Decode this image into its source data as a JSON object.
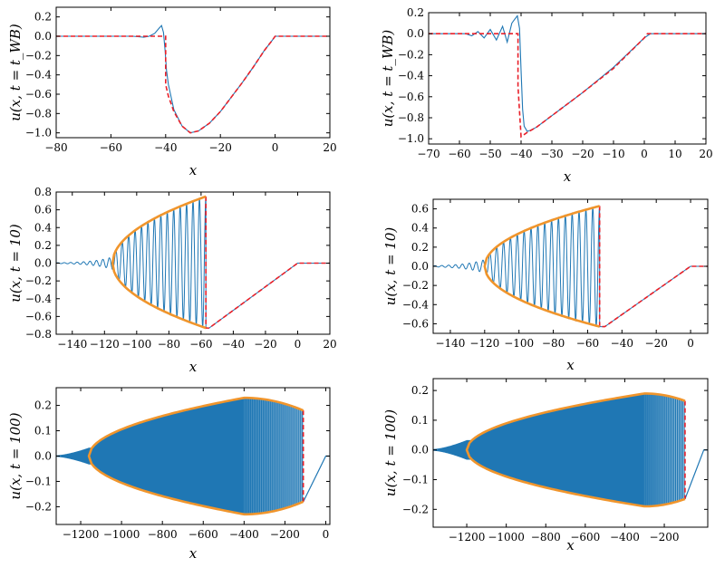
{
  "chart_data": [
    {
      "type": "line",
      "ylabel": "u(x, t = t_WB)",
      "xlabel": "x",
      "xlim": [
        -80,
        20
      ],
      "ylim": [
        -1.05,
        0.3
      ],
      "xticks": [
        -80,
        -60,
        -40,
        -20,
        0,
        20
      ],
      "xtick_labels": [
        "−80",
        "−60",
        "−40",
        "−20",
        "0",
        "20"
      ],
      "yticks": [
        -1.0,
        -0.8,
        -0.6,
        -0.4,
        -0.2,
        0.0,
        0.2
      ],
      "ytick_labels": [
        "−1.0",
        "−0.8",
        "−0.6",
        "−0.4",
        "−0.2",
        "0.0",
        "0.2"
      ],
      "series": [
        {
          "kind": "numerical",
          "color": "#1f77b4",
          "style": "solid",
          "x": [
            -80,
            -52,
            -48,
            -46,
            -44,
            -42.5,
            -41.5,
            -40.8,
            -40.2,
            -39.7,
            -39,
            -37,
            -34,
            -31,
            -28,
            -24,
            -20,
            -16,
            -12,
            -8,
            -4,
            -1,
            0,
            2,
            20
          ],
          "y": [
            0,
            0,
            -0.01,
            0.0,
            0.03,
            0.08,
            0.11,
            0.04,
            -0.15,
            -0.35,
            -0.5,
            -0.76,
            -0.93,
            -1.0,
            -0.98,
            -0.9,
            -0.78,
            -0.63,
            -0.48,
            -0.32,
            -0.15,
            -0.04,
            0,
            0,
            0
          ]
        },
        {
          "kind": "asymptotic",
          "color": "#e8202a",
          "style": "dashed",
          "x": [
            -80,
            -40,
            -40,
            -39,
            -37,
            -34,
            -31,
            -28,
            -24,
            -20,
            -16,
            -12,
            -8,
            -4,
            -1,
            0,
            20
          ],
          "y": [
            0,
            0,
            -0.5,
            -0.62,
            -0.78,
            -0.93,
            -1.0,
            -0.98,
            -0.9,
            -0.78,
            -0.63,
            -0.48,
            -0.32,
            -0.15,
            -0.04,
            0,
            0
          ]
        }
      ]
    },
    {
      "type": "line",
      "ylabel": "u(x, t = t_WB)",
      "xlabel": "x",
      "xlim": [
        -70,
        20
      ],
      "ylim": [
        -1.05,
        0.2
      ],
      "xticks": [
        -70,
        -60,
        -50,
        -40,
        -30,
        -20,
        -10,
        0,
        10,
        20
      ],
      "xtick_labels": [
        "−70",
        "−60",
        "−50",
        "−40",
        "−30",
        "−20",
        "−10",
        "0",
        "10",
        "20"
      ],
      "yticks": [
        -1.0,
        -0.8,
        -0.6,
        -0.4,
        -0.2,
        0.0,
        0.2
      ],
      "ytick_labels": [
        "−1.0",
        "−0.8",
        "−0.6",
        "−0.4",
        "−0.2",
        "0.0",
        "0.2"
      ],
      "series": [
        {
          "kind": "numerical",
          "color": "#1f77b4",
          "style": "solid",
          "x": [
            -70,
            -58,
            -56,
            -54,
            -52,
            -50,
            -48,
            -46,
            -44.5,
            -43,
            -42,
            -41.2,
            -40.5,
            -40,
            -39.5,
            -39,
            -38,
            -37,
            -35,
            -30,
            -20,
            -10,
            0,
            2,
            20
          ],
          "y": [
            0,
            0,
            -0.02,
            0.02,
            -0.04,
            0.04,
            -0.06,
            0.07,
            -0.08,
            0.1,
            0.14,
            0.17,
            0.05,
            -0.35,
            -0.72,
            -0.88,
            -0.93,
            -0.92,
            -0.89,
            -0.78,
            -0.56,
            -0.32,
            -0.04,
            0,
            0
          ]
        },
        {
          "kind": "asymptotic",
          "color": "#e8202a",
          "style": "dashed",
          "x": [
            -70,
            -41,
            -41,
            -40,
            -38,
            -35,
            -30,
            -20,
            -10,
            0,
            1,
            20
          ],
          "y": [
            0,
            0,
            -0.5,
            -0.98,
            -0.94,
            -0.89,
            -0.78,
            -0.56,
            -0.33,
            -0.04,
            0,
            0
          ]
        }
      ]
    },
    {
      "type": "line",
      "ylabel": "u(x, t = 10)",
      "xlabel": "x",
      "xlim": [
        -150,
        20
      ],
      "ylim": [
        -0.8,
        0.8
      ],
      "xticks": [
        -140,
        -120,
        -100,
        -80,
        -60,
        -40,
        -20,
        0,
        20
      ],
      "xtick_labels": [
        "−140",
        "−120",
        "−100",
        "−80",
        "−60",
        "−40",
        "−20",
        "0",
        "20"
      ],
      "yticks": [
        -0.8,
        -0.6,
        -0.4,
        -0.2,
        0.0,
        0.2,
        0.4,
        0.6,
        0.8
      ],
      "ytick_labels": [
        "−0.8",
        "−0.6",
        "−0.4",
        "−0.2",
        "0.0",
        "0.2",
        "0.4",
        "0.6",
        "0.8"
      ],
      "oscillation": {
        "x_start": -150,
        "x_shock": -57,
        "wavelength": 4.0,
        "envelope_x_left": -115
      },
      "envelope": {
        "color": "#f0952c",
        "x_left": -115,
        "x_right": -57,
        "y_upper_right": 0.75,
        "y_lower_right": -0.73
      },
      "ramp": {
        "x": [
          -55,
          0,
          4,
          20
        ],
        "y": [
          -0.73,
          0,
          0,
          0
        ]
      },
      "series": [
        {
          "kind": "asymptotic",
          "color": "#e8202a",
          "style": "dashed",
          "x": [
            -57,
            -57,
            -55,
            0,
            4,
            20
          ],
          "y": [
            0.75,
            -0.73,
            -0.73,
            0,
            0,
            0
          ]
        }
      ]
    },
    {
      "type": "line",
      "ylabel": "u(x, t = 10)",
      "xlabel": "x",
      "xlim": [
        -150,
        10
      ],
      "ylim": [
        -0.7,
        0.7
      ],
      "xticks": [
        -140,
        -120,
        -100,
        -80,
        -60,
        -40,
        -20,
        0
      ],
      "xtick_labels": [
        "−140",
        "−120",
        "−100",
        "−80",
        "−60",
        "−40",
        "−20",
        "0"
      ],
      "yticks": [
        -0.6,
        -0.4,
        -0.2,
        0.0,
        0.2,
        0.4,
        0.6
      ],
      "ytick_labels": [
        "−0.6",
        "−0.4",
        "−0.2",
        "0.0",
        "0.2",
        "0.4",
        "0.6"
      ],
      "oscillation": {
        "x_start": -150,
        "x_shock": -53,
        "wavelength": 4.0,
        "envelope_x_left": -120
      },
      "envelope": {
        "color": "#f0952c",
        "x_left": -120,
        "x_right": -53,
        "y_upper_right": 0.63,
        "y_lower_right": -0.63
      },
      "ramp": {
        "x": [
          -50,
          0,
          3,
          10
        ],
        "y": [
          -0.63,
          0,
          0,
          0
        ]
      },
      "series": [
        {
          "kind": "asymptotic",
          "color": "#e8202a",
          "style": "dashed",
          "x": [
            -53,
            -53,
            -50,
            0,
            3,
            10
          ],
          "y": [
            0.63,
            -0.63,
            -0.63,
            0,
            0,
            0
          ]
        }
      ]
    },
    {
      "type": "line",
      "ylabel": "u(x, t = 100)",
      "xlabel": "x",
      "xlim": [
        -1320,
        20
      ],
      "ylim": [
        -0.27,
        0.27
      ],
      "xticks": [
        -1200,
        -1000,
        -800,
        -600,
        -400,
        -200,
        0
      ],
      "xtick_labels": [
        "−1200",
        "−1000",
        "−800",
        "−600",
        "−400",
        "−200",
        "0"
      ],
      "yticks": [
        -0.2,
        -0.1,
        0.0,
        0.1,
        0.2
      ],
      "ytick_labels": [
        "−0.2",
        "−0.1",
        "0.0",
        "0.1",
        "0.2"
      ],
      "band": {
        "color": "#1f77b4",
        "x_start": -1320,
        "x_envelope": -1160,
        "x_shock": -110
      },
      "envelope": {
        "color": "#f0952c",
        "x_left": -1160,
        "x_right": -110,
        "x_peak": -400,
        "y_peak_upper": 0.23,
        "y_peak_lower": -0.23,
        "y_upper_right": 0.18,
        "y_lower_right": -0.18
      },
      "ramp": {
        "x": [
          -110,
          0,
          20
        ],
        "y": [
          -0.18,
          0,
          0
        ]
      },
      "series": [
        {
          "kind": "asymptotic",
          "color": "#e8202a",
          "style": "dashed",
          "x": [
            -110,
            -110
          ],
          "y": [
            0.18,
            -0.18
          ]
        }
      ]
    },
    {
      "type": "line",
      "ylabel": "u(x, t = 100)",
      "xlabel": "x",
      "xlim": [
        -1370,
        20
      ],
      "ylim": [
        -0.26,
        0.24
      ],
      "xticks": [
        -1200,
        -1000,
        -800,
        -600,
        -400,
        -200
      ],
      "xtick_labels": [
        "−1200",
        "−1000",
        "−800",
        "−600",
        "−400",
        "−200"
      ],
      "yticks": [
        -0.2,
        -0.1,
        0.0,
        0.1,
        0.2
      ],
      "ytick_labels": [
        "−0.2",
        "−0.1",
        "0.0",
        "0.1",
        "0.2"
      ],
      "band": {
        "color": "#1f77b4",
        "x_start": -1370,
        "x_envelope": -1200,
        "x_shock": -95
      },
      "envelope": {
        "color": "#f0952c",
        "x_left": -1200,
        "x_right": -95,
        "x_peak": -300,
        "y_peak_upper": 0.19,
        "y_peak_lower": -0.19,
        "y_upper_right": 0.165,
        "y_lower_right": -0.165
      },
      "ramp": {
        "x": [
          -95,
          0,
          20
        ],
        "y": [
          -0.165,
          0,
          0
        ]
      },
      "series": [
        {
          "kind": "asymptotic",
          "color": "#e8202a",
          "style": "dashed",
          "x": [
            -95,
            -95
          ],
          "y": [
            0.165,
            -0.165
          ]
        }
      ]
    }
  ]
}
